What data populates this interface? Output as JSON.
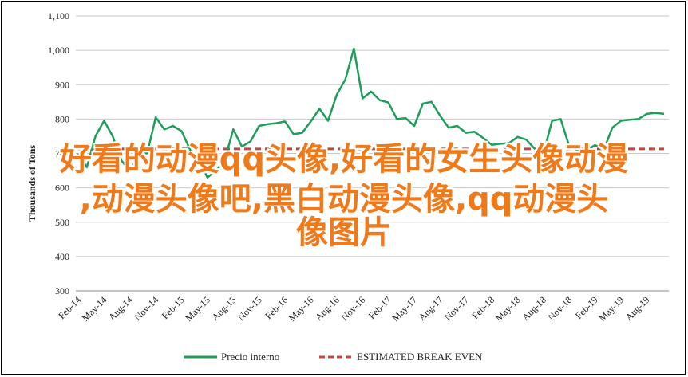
{
  "chart_data": {
    "type": "line",
    "ylabel": "Thousands of Tons",
    "ylim": [
      300,
      1100
    ],
    "yticks": [
      300,
      400,
      500,
      600,
      700,
      800,
      900,
      1000,
      1100
    ],
    "ytick_labels": [
      "300",
      "400",
      "500",
      "600",
      "700",
      "800",
      "900",
      "1,000",
      "1,100"
    ],
    "xtick_labels": [
      "Feb-14",
      "May-14",
      "Aug-14",
      "Nov-14",
      "Feb-15",
      "May-15",
      "Aug-15",
      "Nov-15",
      "Feb-16",
      "May-16",
      "Aug-16",
      "Nov-16",
      "Feb-17",
      "May-17",
      "Aug-17",
      "Nov-17",
      "Feb-18",
      "May-18",
      "Aug-18",
      "Nov-18",
      "Feb-19",
      "May-19",
      "Aug-19"
    ],
    "grid": true,
    "legend_position": "bottom",
    "series": [
      {
        "name": "Precio interno",
        "color": "#1e9e5a",
        "style": "solid",
        "x": [
          "Feb-14",
          "Mar-14",
          "Apr-14",
          "May-14",
          "Jun-14",
          "Jul-14",
          "Aug-14",
          "Sep-14",
          "Oct-14",
          "Nov-14",
          "Dec-14",
          "Jan-15",
          "Feb-15",
          "Mar-15",
          "Apr-15",
          "May-15",
          "Jun-15",
          "Jul-15",
          "Aug-15",
          "Sep-15",
          "Oct-15",
          "Nov-15",
          "Dec-15",
          "Jan-16",
          "Feb-16",
          "Mar-16",
          "Apr-16",
          "May-16",
          "Jun-16",
          "Jul-16",
          "Aug-16",
          "Sep-16",
          "Oct-16",
          "Nov-16",
          "Dec-16",
          "Jan-17",
          "Feb-17",
          "Mar-17",
          "Apr-17",
          "May-17",
          "Jun-17",
          "Jul-17",
          "Aug-17",
          "Sep-17",
          "Oct-17",
          "Nov-17",
          "Dec-17",
          "Jan-18",
          "Feb-18",
          "Mar-18",
          "Apr-18",
          "May-18",
          "Jun-18",
          "Jul-18",
          "Aug-18",
          "Sep-18",
          "Oct-18",
          "Nov-18",
          "Dec-18",
          "Jan-19",
          "Feb-19",
          "Mar-19",
          "Apr-19",
          "May-19",
          "Jun-19",
          "Jul-19",
          "Aug-19",
          "Sep-19",
          "Oct-19"
        ],
        "values": [
          700,
          660,
          750,
          795,
          750,
          680,
          648,
          700,
          700,
          805,
          770,
          780,
          765,
          710,
          680,
          630,
          650,
          680,
          770,
          720,
          735,
          780,
          785,
          788,
          793,
          756,
          760,
          793,
          830,
          795,
          870,
          915,
          1005,
          860,
          880,
          855,
          848,
          800,
          803,
          780,
          845,
          850,
          810,
          775,
          780,
          760,
          763,
          745,
          725,
          728,
          730,
          748,
          740,
          713,
          700,
          795,
          800,
          720,
          708,
          710,
          724,
          710,
          775,
          795,
          798,
          800,
          815,
          818,
          815
        ]
      },
      {
        "name": "ESTIMATED BREAK EVEN",
        "color": "#c9453a",
        "style": "dashed",
        "value": 713
      }
    ]
  },
  "watermark": {
    "line1": "好看的动漫qq头像,好看的女生头像动漫",
    "line2": ",动漫头像吧,黑白动漫头像,qq动漫头",
    "line3": "像图片"
  }
}
